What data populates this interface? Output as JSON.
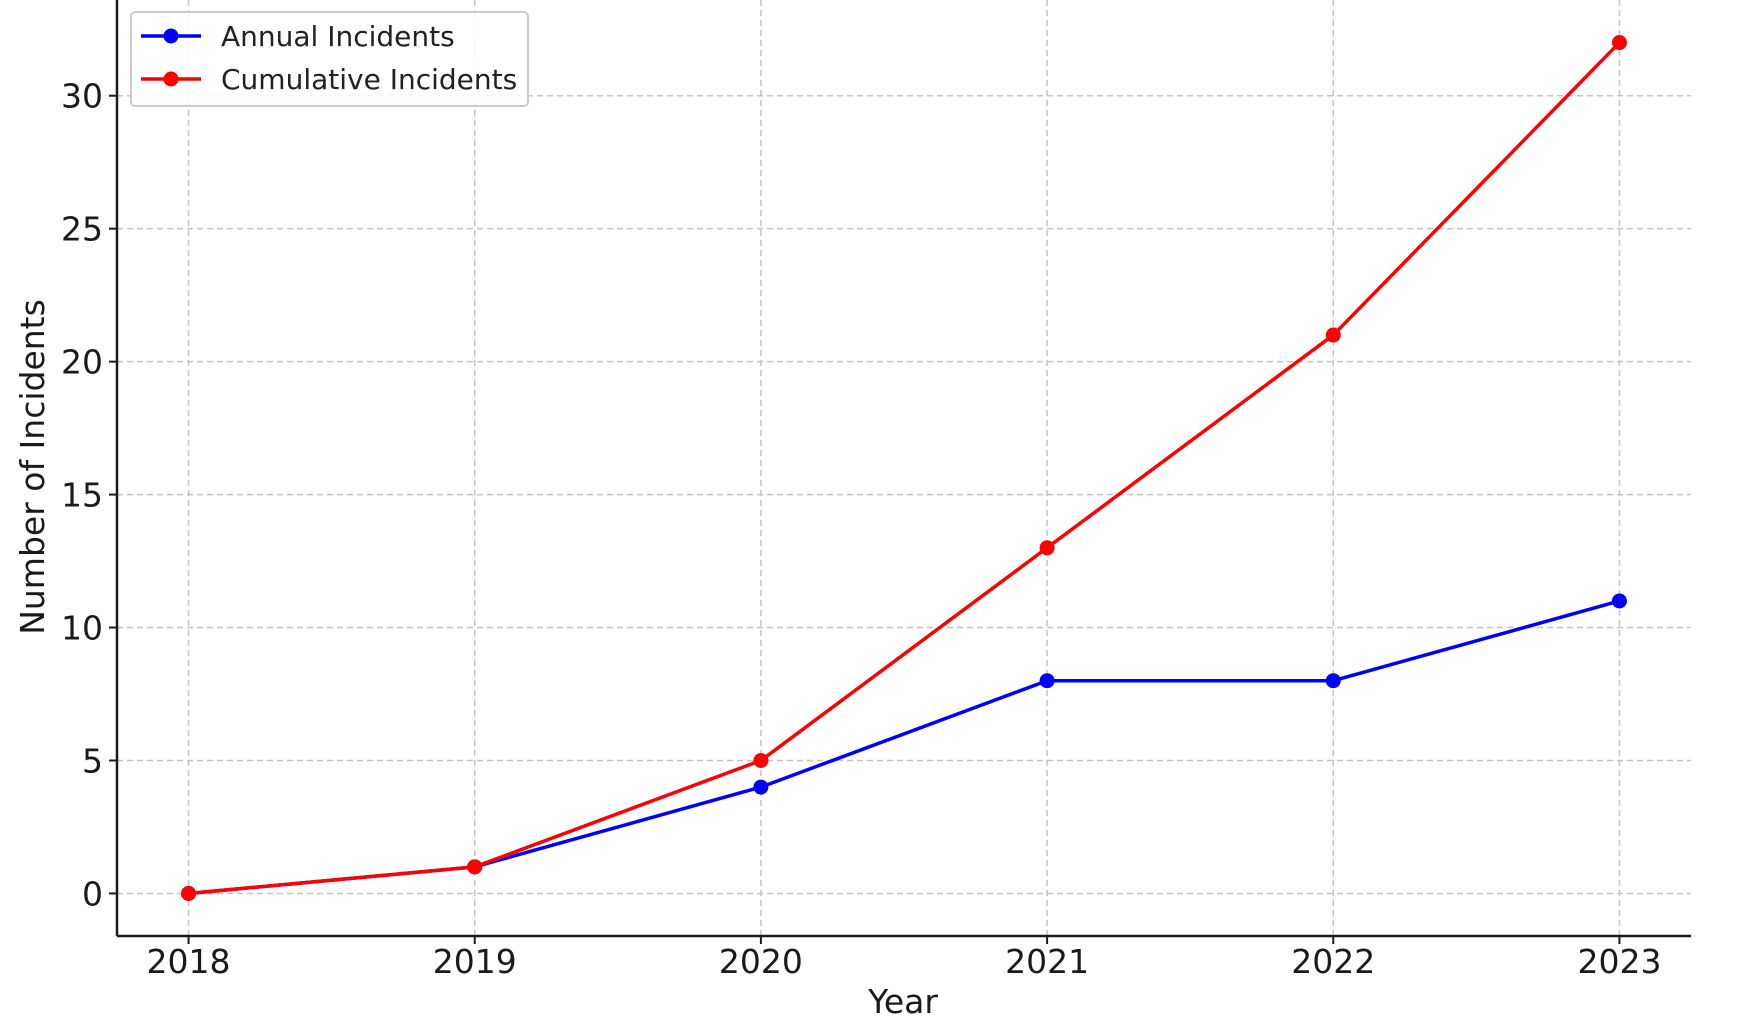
{
  "chart_data": {
    "type": "line",
    "title": "",
    "xlabel": "Year",
    "ylabel": "Number of Incidents",
    "x": [
      2018,
      2019,
      2020,
      2021,
      2022,
      2023
    ],
    "xticks": [
      "2018",
      "2019",
      "2020",
      "2021",
      "2022",
      "2023"
    ],
    "yticks": [
      0,
      5,
      10,
      15,
      20,
      25,
      30
    ],
    "xlim": [
      2017.75,
      2023.25
    ],
    "ylim": [
      -1.6,
      33.6
    ],
    "grid": true,
    "legend_position": "top-left",
    "series": [
      {
        "name": "Annual Incidents",
        "color": "#0000ff",
        "marker": "circle",
        "values": [
          0,
          1,
          4,
          8,
          8,
          11
        ]
      },
      {
        "name": "Cumulative Incidents",
        "color": "#ff0000",
        "marker": "circle",
        "values": [
          0,
          1,
          5,
          13,
          21,
          32
        ]
      }
    ]
  }
}
